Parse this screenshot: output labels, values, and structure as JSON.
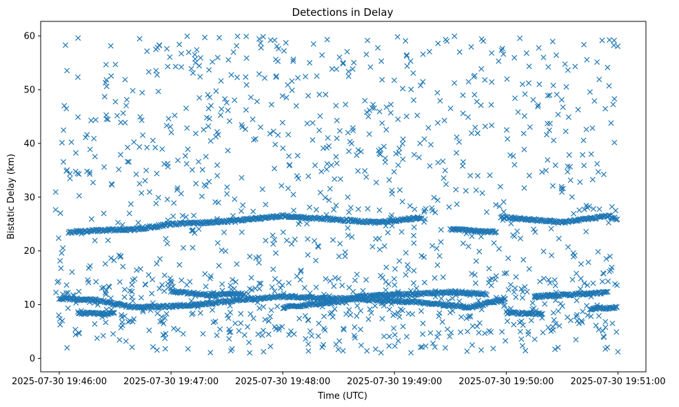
{
  "chart_data": {
    "type": "scatter",
    "title": "Detections in Delay",
    "xlabel": "Time (UTC)",
    "ylabel": "Bistatic Delay (km)",
    "marker": "x",
    "color": "#1f77b4",
    "grid": false,
    "xlim": [
      "2025-07-30 19:45:50",
      "2025-07-30 19:51:15"
    ],
    "ylim": [
      -2.5,
      62.7
    ],
    "x_ticks": [
      "2025-07-30 19:46:00",
      "2025-07-30 19:47:00",
      "2025-07-30 19:48:00",
      "2025-07-30 19:49:00",
      "2025-07-30 19:50:00",
      "2025-07-30 19:51:00"
    ],
    "y_ticks": [
      0,
      10,
      20,
      30,
      40,
      50,
      60
    ],
    "tracks": [
      {
        "points": [
          [
            "2025-07-30 19:46:05",
            23.5
          ],
          [
            "2025-07-30 19:46:20",
            23.8
          ],
          [
            "2025-07-30 19:46:40",
            24.0
          ],
          [
            "2025-07-30 19:47:00",
            25.0
          ],
          [
            "2025-07-30 19:47:30",
            25.5
          ],
          [
            "2025-07-30 19:48:00",
            26.5
          ],
          [
            "2025-07-30 19:48:30",
            25.8
          ],
          [
            "2025-07-30 19:48:50",
            25.3
          ],
          [
            "2025-07-30 19:49:15",
            26.2
          ]
        ]
      },
      {
        "points": [
          [
            "2025-07-30 19:49:30",
            24.0
          ],
          [
            "2025-07-30 19:49:55",
            23.5
          ]
        ]
      },
      {
        "points": [
          [
            "2025-07-30 19:49:57",
            26.3
          ],
          [
            "2025-07-30 19:50:30",
            25.3
          ],
          [
            "2025-07-30 19:50:55",
            26.5
          ],
          [
            "2025-07-30 19:51:00",
            25.8
          ]
        ]
      },
      {
        "points": [
          [
            "2025-07-30 19:46:00",
            11.2
          ],
          [
            "2025-07-30 19:46:20",
            10.8
          ],
          [
            "2025-07-30 19:46:40",
            9.5
          ],
          [
            "2025-07-30 19:47:10",
            9.8
          ],
          [
            "2025-07-30 19:47:40",
            11.0
          ],
          [
            "2025-07-30 19:48:00",
            11.5
          ],
          [
            "2025-07-30 19:48:40",
            11.0
          ],
          [
            "2025-07-30 19:49:10",
            10.5
          ],
          [
            "2025-07-30 19:49:40",
            9.5
          ],
          [
            "2025-07-30 19:50:00",
            11.0
          ]
        ]
      },
      {
        "points": [
          [
            "2025-07-30 19:46:10",
            8.5
          ],
          [
            "2025-07-30 19:46:30",
            8.3
          ]
        ]
      },
      {
        "points": [
          [
            "2025-07-30 19:47:00",
            12.5
          ],
          [
            "2025-07-30 19:47:20",
            11.8
          ],
          [
            "2025-07-30 19:47:40",
            12.0
          ]
        ]
      },
      {
        "points": [
          [
            "2025-07-30 19:48:00",
            9.5
          ],
          [
            "2025-07-30 19:48:30",
            10.5
          ],
          [
            "2025-07-30 19:48:40",
            11.5
          ],
          [
            "2025-07-30 19:49:30",
            12.3
          ],
          [
            "2025-07-30 19:49:50",
            12.0
          ]
        ]
      },
      {
        "points": [
          [
            "2025-07-30 19:50:00",
            8.5
          ],
          [
            "2025-07-30 19:50:20",
            8.3
          ]
        ]
      },
      {
        "points": [
          [
            "2025-07-30 19:50:15",
            11.5
          ],
          [
            "2025-07-30 19:50:40",
            12.0
          ],
          [
            "2025-07-30 19:50:55",
            12.3
          ]
        ]
      },
      {
        "points": [
          [
            "2025-07-30 19:50:45",
            9.2
          ],
          [
            "2025-07-30 19:51:00",
            9.5
          ]
        ]
      }
    ],
    "noise_x_range": [
      "2025-07-30 19:45:58",
      "2025-07-30 19:51:00"
    ],
    "noise_y_range": [
      1,
      60
    ],
    "noise_count": 1000,
    "band_noise_y_range": [
      4,
      15
    ],
    "band_noise_count": 250
  }
}
